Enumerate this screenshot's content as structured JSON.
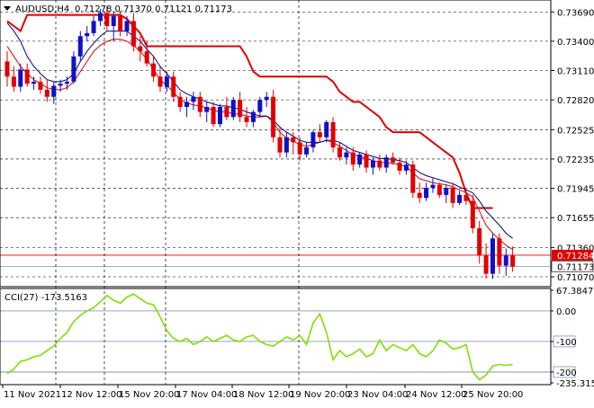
{
  "header": {
    "symbol": "AUDUSD,H4",
    "ohlc": "0.71278 0.71370 0.71121 0.71173"
  },
  "price_axis_labels": [
    "0.73690",
    "0.73400",
    "0.73110",
    "0.72820",
    "0.72525",
    "0.72235",
    "0.71945",
    "0.71655",
    "0.71360",
    "0.71070"
  ],
  "price_tags": {
    "current": "0.71173",
    "red_line": "0.71284"
  },
  "cci_header": "CCI(27) -173.5163",
  "cci_axis_labels": [
    "67.3847",
    "0.00",
    "-100",
    "-200",
    "-235.315"
  ],
  "time_labels": [
    "11 Nov 2021",
    "12 Nov 12:00",
    "15 Nov 20:00",
    "17 Nov 04:00",
    "18 Nov 12:00",
    "19 Nov 20:00",
    "23 Nov 04:00",
    "24 Nov 12:00",
    "25 Nov 20:00"
  ],
  "colors": {
    "bull": "#1010c8",
    "bear": "#e00000",
    "upper_band": "#e00000",
    "ma_dark": "#000080",
    "ma_red": "#e00000",
    "cci": "#80e000",
    "grid": "#000000",
    "level": "#5070a0",
    "tag_red": "#e00000",
    "tag_white": "#ffffff"
  },
  "chart_data": [
    {
      "type": "candlestick",
      "title": "AUDUSD,H4",
      "ylim": [
        0.7099,
        0.7379
      ],
      "candles": [
        [
          0.732,
          0.733,
          0.7295,
          0.7305
        ],
        [
          0.7305,
          0.7315,
          0.729,
          0.7295
        ],
        [
          0.7295,
          0.7318,
          0.729,
          0.7312
        ],
        [
          0.7312,
          0.7318,
          0.7295,
          0.7298
        ],
        [
          0.7298,
          0.7305,
          0.7292,
          0.73
        ],
        [
          0.73,
          0.7305,
          0.7288,
          0.7292
        ],
        [
          0.7292,
          0.7302,
          0.728,
          0.7285
        ],
        [
          0.7285,
          0.73,
          0.7278,
          0.7296
        ],
        [
          0.7296,
          0.7302,
          0.729,
          0.7298
        ],
        [
          0.7298,
          0.7305,
          0.7292,
          0.73
        ],
        [
          0.73,
          0.733,
          0.7298,
          0.7325
        ],
        [
          0.7325,
          0.735,
          0.732,
          0.7345
        ],
        [
          0.7345,
          0.7355,
          0.734,
          0.7348
        ],
        [
          0.7348,
          0.7365,
          0.7345,
          0.736
        ],
        [
          0.736,
          0.7372,
          0.7355,
          0.7368
        ],
        [
          0.7368,
          0.7375,
          0.735,
          0.7355
        ],
        [
          0.7355,
          0.737,
          0.734,
          0.7365
        ],
        [
          0.7365,
          0.737,
          0.7345,
          0.735
        ],
        [
          0.735,
          0.7365,
          0.7345,
          0.736
        ],
        [
          0.736,
          0.7368,
          0.733,
          0.7335
        ],
        [
          0.7335,
          0.7345,
          0.732,
          0.733
        ],
        [
          0.733,
          0.734,
          0.7315,
          0.7318
        ],
        [
          0.7318,
          0.7325,
          0.73,
          0.7305
        ],
        [
          0.7305,
          0.7315,
          0.729,
          0.7295
        ],
        [
          0.7295,
          0.731,
          0.729,
          0.7305
        ],
        [
          0.7305,
          0.731,
          0.728,
          0.7285
        ],
        [
          0.7285,
          0.729,
          0.727,
          0.7275
        ],
        [
          0.7275,
          0.7285,
          0.7265,
          0.728
        ],
        [
          0.728,
          0.729,
          0.7272,
          0.7285
        ],
        [
          0.7285,
          0.729,
          0.7265,
          0.727
        ],
        [
          0.727,
          0.728,
          0.726,
          0.7275
        ],
        [
          0.7275,
          0.728,
          0.7255,
          0.7258
        ],
        [
          0.7258,
          0.7278,
          0.7255,
          0.7275
        ],
        [
          0.7275,
          0.7285,
          0.7262,
          0.7265
        ],
        [
          0.7265,
          0.7285,
          0.7262,
          0.7282
        ],
        [
          0.7282,
          0.729,
          0.726,
          0.7265
        ],
        [
          0.7265,
          0.7275,
          0.7255,
          0.726
        ],
        [
          0.726,
          0.7272,
          0.7255,
          0.727
        ],
        [
          0.727,
          0.7285,
          0.7265,
          0.7282
        ],
        [
          0.7282,
          0.729,
          0.7275,
          0.7285
        ],
        [
          0.7285,
          0.7292,
          0.724,
          0.7245
        ],
        [
          0.7245,
          0.7255,
          0.7225,
          0.723
        ],
        [
          0.723,
          0.725,
          0.7225,
          0.7245
        ],
        [
          0.7245,
          0.725,
          0.7228,
          0.724
        ],
        [
          0.724,
          0.7245,
          0.7222,
          0.7228
        ],
        [
          0.7228,
          0.724,
          0.7225,
          0.7235
        ],
        [
          0.7235,
          0.7252,
          0.723,
          0.725
        ],
        [
          0.725,
          0.7258,
          0.724,
          0.7245
        ],
        [
          0.7245,
          0.7262,
          0.724,
          0.726
        ],
        [
          0.726,
          0.7265,
          0.723,
          0.7235
        ],
        [
          0.7235,
          0.724,
          0.7222,
          0.7225
        ],
        [
          0.7225,
          0.7235,
          0.7218,
          0.723
        ],
        [
          0.723,
          0.7235,
          0.7212,
          0.7218
        ],
        [
          0.7218,
          0.723,
          0.7215,
          0.7228
        ],
        [
          0.7228,
          0.7232,
          0.721,
          0.7215
        ],
        [
          0.7215,
          0.7225,
          0.7208,
          0.7222
        ],
        [
          0.7222,
          0.7228,
          0.7212,
          0.7215
        ],
        [
          0.7215,
          0.7228,
          0.721,
          0.7225
        ],
        [
          0.7225,
          0.723,
          0.7218,
          0.722
        ],
        [
          0.722,
          0.7225,
          0.7208,
          0.7212
        ],
        [
          0.7212,
          0.7222,
          0.7208,
          0.7218
        ],
        [
          0.7218,
          0.7222,
          0.7185,
          0.719
        ],
        [
          0.719,
          0.72,
          0.718,
          0.7185
        ],
        [
          0.7185,
          0.72,
          0.7182,
          0.7195
        ],
        [
          0.7195,
          0.7205,
          0.719,
          0.7198
        ],
        [
          0.7198,
          0.72,
          0.7185,
          0.7188
        ],
        [
          0.7188,
          0.7198,
          0.718,
          0.7195
        ],
        [
          0.7195,
          0.72,
          0.7175,
          0.718
        ],
        [
          0.718,
          0.7192,
          0.7178,
          0.7188
        ],
        [
          0.7188,
          0.7192,
          0.7178,
          0.7182
        ],
        [
          0.7182,
          0.7188,
          0.715,
          0.7155
        ],
        [
          0.7155,
          0.7162,
          0.712,
          0.7128
        ],
        [
          0.7128,
          0.714,
          0.7105,
          0.711
        ],
        [
          0.711,
          0.715,
          0.7105,
          0.7145
        ],
        [
          0.7145,
          0.715,
          0.711,
          0.7118
        ],
        [
          0.7118,
          0.7135,
          0.7108,
          0.7128
        ],
        [
          0.7128,
          0.7137,
          0.7112,
          0.7117
        ]
      ],
      "upper_band": [
        0.736,
        0.7355,
        0.735,
        0.7366,
        0.7366,
        0.7366,
        0.7366,
        0.7366,
        0.7366,
        0.7366,
        0.7366,
        0.7366,
        0.7366,
        0.7366,
        0.7366,
        0.7366,
        0.7366,
        0.7366,
        0.7362,
        0.7355,
        0.7348,
        0.7335,
        0.7335,
        0.7335,
        0.7335,
        0.7335,
        0.7335,
        0.7335,
        0.7335,
        0.7335,
        0.7335,
        0.7335,
        0.7335,
        0.7335,
        0.7335,
        0.7335,
        0.7325,
        0.731,
        0.7305,
        0.7305,
        0.7305,
        0.7305,
        0.7305,
        0.7305,
        0.7305,
        0.7305,
        0.7305,
        0.7305,
        0.7305,
        0.73,
        0.729,
        0.7285,
        0.728,
        0.728,
        0.7275,
        0.727,
        0.7265,
        0.7255,
        0.725,
        0.725,
        0.725,
        0.725,
        0.725,
        0.7245,
        0.724,
        0.7235,
        0.723,
        0.7225,
        0.721,
        0.719,
        0.7175,
        0.7175,
        0.7175,
        0.7175,
        null,
        null,
        null
      ],
      "ma_dark": [
        0.7358,
        0.735,
        0.734,
        0.7325,
        0.7315,
        0.7308,
        0.7302,
        0.73,
        0.73,
        0.7302,
        0.7308,
        0.732,
        0.733,
        0.7338,
        0.7345,
        0.735,
        0.735,
        0.735,
        0.735,
        0.7345,
        0.734,
        0.7332,
        0.7325,
        0.7315,
        0.7308,
        0.73,
        0.7292,
        0.7288,
        0.7285,
        0.7283,
        0.728,
        0.7278,
        0.7276,
        0.7276,
        0.7274,
        0.7273,
        0.727,
        0.7268,
        0.7266,
        0.7266,
        0.7262,
        0.7255,
        0.725,
        0.7246,
        0.7242,
        0.724,
        0.724,
        0.724,
        0.7242,
        0.7242,
        0.724,
        0.7236,
        0.7232,
        0.723,
        0.7228,
        0.7226,
        0.7224,
        0.7224,
        0.7223,
        0.7222,
        0.722,
        0.7215,
        0.721,
        0.7207,
        0.7205,
        0.7203,
        0.7201,
        0.7199,
        0.7196,
        0.7193,
        0.719,
        0.7182,
        0.7172,
        0.7165,
        0.7158,
        0.715,
        0.7145
      ],
      "ma_red": [
        0.7335,
        0.7325,
        0.7315,
        0.7308,
        0.7302,
        0.7298,
        0.7294,
        0.7292,
        0.7292,
        0.7294,
        0.73,
        0.731,
        0.732,
        0.733,
        0.7336,
        0.734,
        0.7342,
        0.7342,
        0.734,
        0.7336,
        0.733,
        0.7322,
        0.7312,
        0.7302,
        0.7296,
        0.729,
        0.7282,
        0.7279,
        0.7277,
        0.7276,
        0.7274,
        0.7272,
        0.727,
        0.727,
        0.7268,
        0.7268,
        0.7266,
        0.7265,
        0.7265,
        0.7266,
        0.726,
        0.725,
        0.7244,
        0.7241,
        0.7238,
        0.7236,
        0.7238,
        0.724,
        0.7242,
        0.724,
        0.7236,
        0.7232,
        0.7228,
        0.7226,
        0.7224,
        0.7222,
        0.722,
        0.722,
        0.7219,
        0.7218,
        0.7216,
        0.721,
        0.7204,
        0.7202,
        0.72,
        0.7199,
        0.7198,
        0.7196,
        0.7193,
        0.719,
        0.7186,
        0.7172,
        0.7158,
        0.715,
        0.7144,
        0.7138,
        0.7134
      ]
    },
    {
      "type": "line",
      "title": "CCI(27) -173.5163",
      "ylim": [
        -235.315,
        67.3847
      ],
      "levels": [
        0,
        -100,
        -200
      ],
      "values": [
        -205,
        -190,
        -165,
        -160,
        -150,
        -145,
        -130,
        -115,
        -90,
        -70,
        -35,
        -15,
        0,
        10,
        30,
        50,
        35,
        25,
        45,
        55,
        40,
        25,
        20,
        -20,
        -65,
        -90,
        -100,
        -90,
        -110,
        -100,
        -85,
        -100,
        -90,
        -80,
        -95,
        -100,
        -85,
        -80,
        -100,
        -110,
        -115,
        -100,
        -85,
        -95,
        -80,
        -110,
        -40,
        -10,
        -70,
        -160,
        -130,
        -150,
        -140,
        -125,
        -150,
        -140,
        -95,
        -130,
        -110,
        -120,
        -130,
        -110,
        -140,
        -150,
        -130,
        -95,
        -105,
        -125,
        -120,
        -110,
        -200,
        -225,
        -210,
        -180,
        -175,
        -178,
        -175
      ]
    }
  ]
}
